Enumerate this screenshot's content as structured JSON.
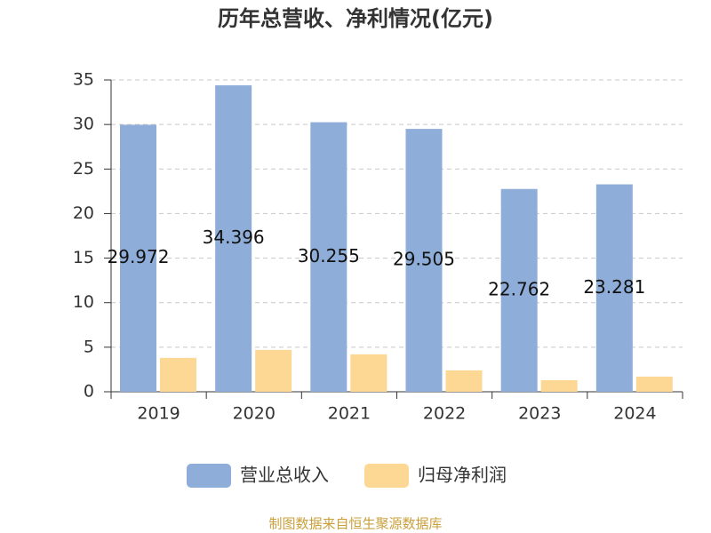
{
  "chart_data": {
    "type": "bar",
    "title": "历年总营收、净利情况(亿元)",
    "categories": [
      "2019",
      "2020",
      "2021",
      "2022",
      "2023",
      "2024"
    ],
    "series": [
      {
        "name": "营业总收入",
        "color": "#8eadd9",
        "values": [
          29.972,
          34.396,
          30.255,
          29.505,
          22.762,
          23.281
        ]
      },
      {
        "name": "归母净利润",
        "color": "#fdd794",
        "values": [
          3.8,
          4.7,
          4.2,
          2.4,
          1.3,
          1.7
        ]
      }
    ],
    "ylim": [
      0,
      35
    ],
    "yticks": [
      0,
      5,
      10,
      15,
      20,
      25,
      30,
      35
    ],
    "grid": true,
    "legend": "bottom",
    "source": "制图数据来自恒生聚源数据库"
  }
}
